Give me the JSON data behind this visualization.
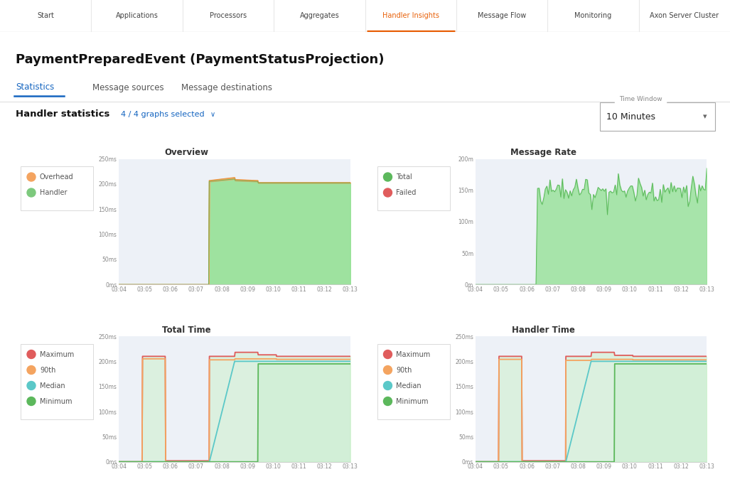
{
  "bg_color": "#f5f7fa",
  "panel_bg": "#edf1f7",
  "white": "#ffffff",
  "nav_bg": "#ffffff",
  "nav_border": "#e0e0e0",
  "nav_items": [
    "Start",
    "Applications",
    "Processors",
    "Aggregates",
    "Handler Insights",
    "Message Flow",
    "Monitoring",
    "Axon Server Cluster"
  ],
  "nav_active": "Handler Insights",
  "nav_active_color": "#e8610a",
  "title": "PaymentPreparedEvent (PaymentStatusProjection)",
  "tabs": [
    "Statistics",
    "Message sources",
    "Message destinations"
  ],
  "active_tab": "Statistics",
  "active_tab_color": "#1565c0",
  "handler_statistics_label": "Handler statistics",
  "graphs_selected": "4 / 4 graphs selected",
  "time_window_label": "Time Window",
  "time_window_value": "10 Minutes",
  "time_labels": [
    "03:04",
    "03:05",
    "03:06",
    "03:07",
    "03:08",
    "03:09",
    "03:10",
    "03:11",
    "03:12",
    "03:13"
  ],
  "overview_title": "Overview",
  "overview_legend": [
    "Overhead",
    "Handler"
  ],
  "overview_colors": [
    "#f4a460",
    "#7dc97d"
  ],
  "message_rate_title": "Message Rate",
  "message_rate_legend": [
    "Total",
    "Failed"
  ],
  "message_rate_colors": [
    "#5cb85c",
    "#e05c5c"
  ],
  "total_time_title": "Total Time",
  "total_time_legend": [
    "Maximum",
    "90th",
    "Median",
    "Minimum"
  ],
  "total_time_colors": [
    "#e05c5c",
    "#f4a460",
    "#5bc8c8",
    "#5cb85c"
  ],
  "handler_time_title": "Handler Time",
  "handler_time_legend": [
    "Maximum",
    "90th",
    "Median",
    "Minimum"
  ],
  "handler_time_colors": [
    "#e05c5c",
    "#f4a460",
    "#5bc8c8",
    "#5cb85c"
  ],
  "overview_ytick_labels": [
    "0ms",
    "50ms",
    "100ms",
    "150ms",
    "200ms",
    "250ms"
  ],
  "latency_ytick_labels": [
    "0ms",
    "50ms",
    "100ms",
    "150ms",
    "200ms",
    "250ms"
  ],
  "mr_ytick_labels": [
    "0m",
    "50m",
    "100m",
    "150m",
    "200m"
  ]
}
